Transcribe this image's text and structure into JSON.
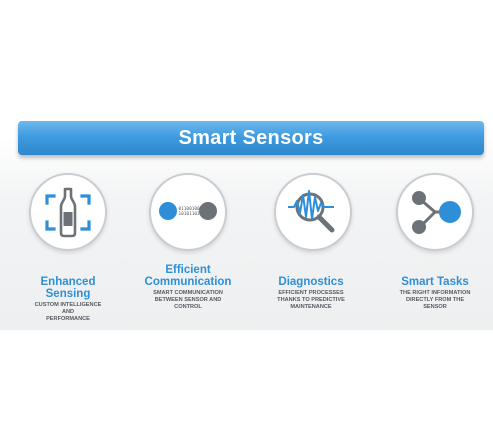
{
  "banner": {
    "title": "Smart Sensors"
  },
  "features": [
    {
      "title_lines": [
        "Enhanced",
        "Sensing"
      ],
      "desc_lines": [
        "CUSTOM INTELLIGENCE",
        "AND",
        "PERFORMANCE"
      ],
      "icon": "bottle-sensing-icon"
    },
    {
      "title_lines": [
        "Efficient",
        "Communication"
      ],
      "desc_lines": [
        "SMART COMMUNICATION",
        "BETWEEN SENSOR AND",
        "CONTROL"
      ],
      "icon": "communication-icon",
      "icon_text": [
        "01100100",
        "10101101"
      ]
    },
    {
      "title_lines": [
        "Diagnostics"
      ],
      "desc_lines": [
        "EFFICIENT PROCESSES",
        "THANKS TO PREDICTIVE",
        "MAINTENANCE"
      ],
      "icon": "magnifier-signal-icon"
    },
    {
      "title_lines": [
        "Smart Tasks"
      ],
      "desc_lines": [
        "THE RIGHT INFORMATION",
        "DIRECTLY FROM THE",
        "SENSOR"
      ],
      "icon": "network-nodes-icon"
    }
  ],
  "colors": {
    "accent_blue": "#2e8fd8",
    "banner_blue": "#3f9ce0",
    "gray": "#6d7278"
  }
}
